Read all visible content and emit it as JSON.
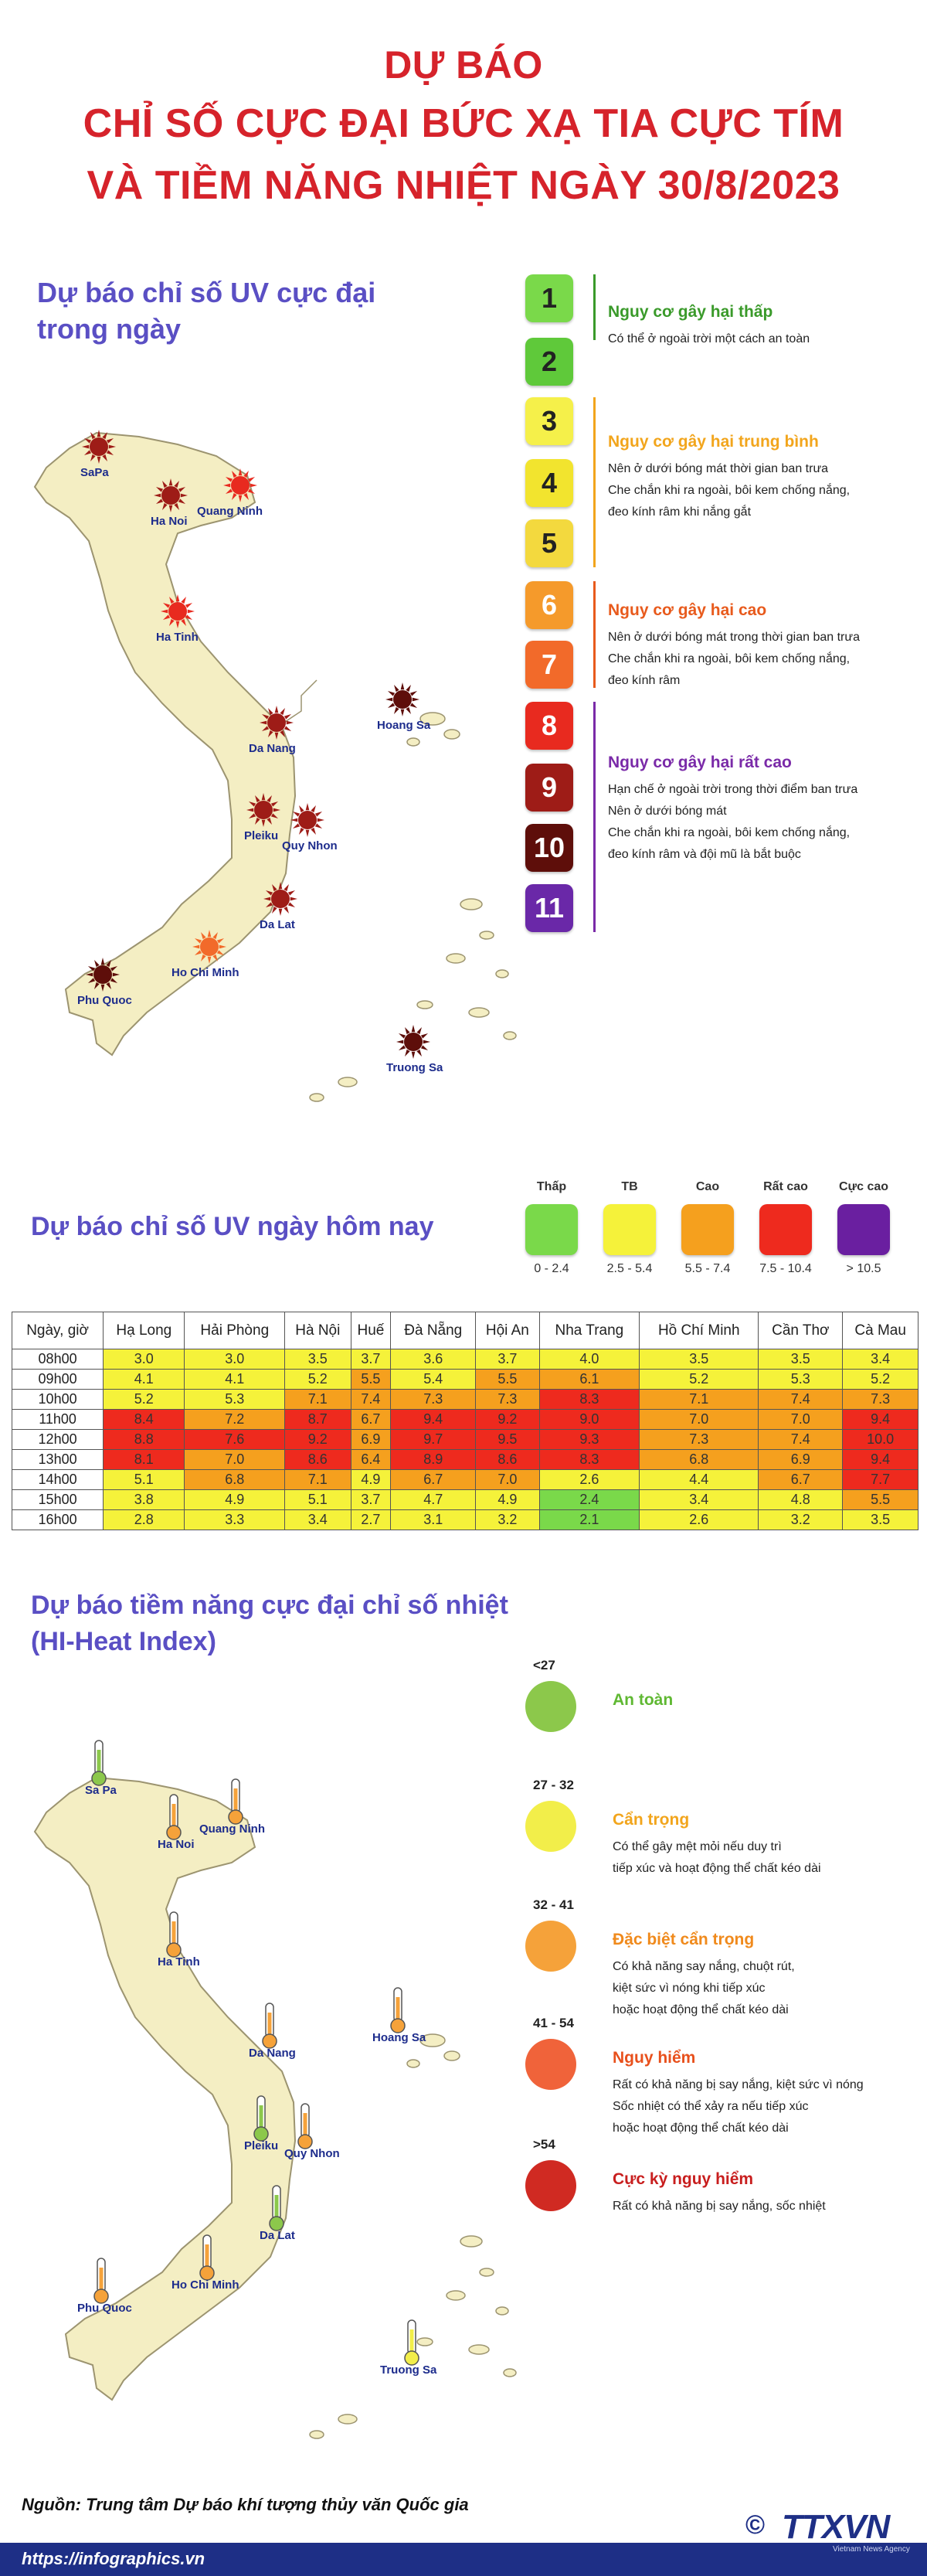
{
  "header": {
    "line1": "DỰ BÁO",
    "line2": "CHỈ SỐ CỰC ĐẠI BỨC XẠ TIA CỰC TÍM",
    "line3": "VÀ TIỀM NĂNG NHIỆT NGÀY 30/8/2023"
  },
  "uv_map": {
    "title_line1": "Dự báo chỉ số UV cực đại",
    "title_line2": "trong ngày",
    "cities": [
      {
        "name": "SaPa",
        "level": 9
      },
      {
        "name": "Ha Noi",
        "level": 9
      },
      {
        "name": "Quang Ninh",
        "level": 8
      },
      {
        "name": "Ha Tinh",
        "level": 8
      },
      {
        "name": "Hoang Sa",
        "level": 10
      },
      {
        "name": "Da Nang",
        "level": 9
      },
      {
        "name": "Pleiku",
        "level": 9
      },
      {
        "name": "Quy Nhon",
        "level": 9
      },
      {
        "name": "Da Lat",
        "level": 9
      },
      {
        "name": "Ho Chi Minh",
        "level": 7
      },
      {
        "name": "Phu Quoc",
        "level": 10
      },
      {
        "name": "Truong Sa",
        "level": 10
      }
    ]
  },
  "uv_scale": {
    "levels": [
      {
        "value": "1",
        "color": "#7ad94a"
      },
      {
        "value": "2",
        "color": "#5fc93a"
      },
      {
        "value": "3",
        "color": "#f5f04a"
      },
      {
        "value": "4",
        "color": "#f2e42e"
      },
      {
        "value": "5",
        "color": "#f3d93e"
      },
      {
        "value": "6",
        "color": "#f59a2b"
      },
      {
        "value": "7",
        "color": "#f26a2a"
      },
      {
        "value": "8",
        "color": "#e82a1f"
      },
      {
        "value": "9",
        "color": "#9e1c17"
      },
      {
        "value": "10",
        "color": "#5e0e0a"
      },
      {
        "value": "11",
        "color": "#6a28a8"
      }
    ],
    "groups": [
      {
        "title": "Nguy cơ gây hại thấp",
        "color": "#3a9a2a",
        "lines": [
          "Có thể ở ngoài trời một cách an toàn"
        ]
      },
      {
        "title": "Nguy cơ gây hại trung bình",
        "color": "#f2a51c",
        "lines": [
          "Nên ở dưới bóng mát thời gian ban trưa",
          "Che chắn khi ra ngoài, bôi kem chống nắng,",
          "đeo kính râm khi nắng gắt"
        ]
      },
      {
        "title": "Nguy cơ gây hại cao",
        "color": "#e85a1c",
        "lines": [
          "Nên ở dưới bóng mát trong thời gian ban trưa",
          "Che chắn khi ra ngoài, bôi kem chống nắng,",
          "đeo kính râm"
        ]
      },
      {
        "title": "Nguy cơ gây hại rất cao",
        "color": "#7a2aa8",
        "lines": [
          "Hạn chế ở ngoài trời trong thời điểm ban trưa",
          "Nên ở dưới bóng mát",
          "Che chắn khi ra ngoài, bôi kem chống nắng,",
          "đeo kính râm và đội mũ là bắt buộc"
        ]
      }
    ]
  },
  "uv_today": {
    "title": "Dự báo chỉ số UV ngày hôm nay",
    "legend": [
      {
        "label": "Thấp",
        "range": "0 - 2.4",
        "color": "#7ad94a"
      },
      {
        "label": "TB",
        "range": "2.5 - 5.4",
        "color": "#f5f23a"
      },
      {
        "label": "Cao",
        "range": "5.5 - 7.4",
        "color": "#f5a01e"
      },
      {
        "label": "Rất cao",
        "range": "7.5 - 10.4",
        "color": "#ee2a1e"
      },
      {
        "label": "Cực cao",
        "range": "> 10.5",
        "color": "#6a1fa0"
      }
    ]
  },
  "uv_table": {
    "header": [
      "Ngày, giờ",
      "Hạ Long",
      "Hải Phòng",
      "Hà Nội",
      "Huế",
      "Đà Nẵng",
      "Hội An",
      "Nha Trang",
      "Hồ Chí Minh",
      "Cần Thơ",
      "Cà Mau"
    ],
    "rows": [
      {
        "time": "08h00",
        "values": [
          "3.0",
          "3.0",
          "3.5",
          "3.7",
          "3.6",
          "3.7",
          "4.0",
          "3.5",
          "3.5",
          "3.4"
        ]
      },
      {
        "time": "09h00",
        "values": [
          "4.1",
          "4.1",
          "5.2",
          "5.5",
          "5.4",
          "5.5",
          "6.1",
          "5.2",
          "5.3",
          "5.2"
        ]
      },
      {
        "time": "10h00",
        "values": [
          "5.2",
          "5.3",
          "7.1",
          "7.4",
          "7.3",
          "7.3",
          "8.3",
          "7.1",
          "7.4",
          "7.3"
        ]
      },
      {
        "time": "11h00",
        "values": [
          "8.4",
          "7.2",
          "8.7",
          "6.7",
          "9.4",
          "9.2",
          "9.0",
          "7.0",
          "7.0",
          "9.4"
        ]
      },
      {
        "time": "12h00",
        "values": [
          "8.8",
          "7.6",
          "9.2",
          "6.9",
          "9.7",
          "9.5",
          "9.3",
          "7.3",
          "7.4",
          "10.0"
        ]
      },
      {
        "time": "13h00",
        "values": [
          "8.1",
          "7.0",
          "8.6",
          "6.4",
          "8.9",
          "8.6",
          "8.3",
          "6.8",
          "6.9",
          "9.4"
        ]
      },
      {
        "time": "14h00",
        "values": [
          "5.1",
          "6.8",
          "7.1",
          "4.9",
          "6.7",
          "7.0",
          "2.6",
          "4.4",
          "6.7",
          "7.7"
        ]
      },
      {
        "time": "15h00",
        "values": [
          "3.8",
          "4.9",
          "5.1",
          "3.7",
          "4.7",
          "4.9",
          "2.4",
          "3.4",
          "4.8",
          "5.5"
        ]
      },
      {
        "time": "16h00",
        "values": [
          "2.8",
          "3.3",
          "3.4",
          "2.7",
          "3.1",
          "3.2",
          "2.1",
          "2.6",
          "3.2",
          "3.5"
        ]
      }
    ]
  },
  "heat": {
    "title_line1": "Dự báo tiềm năng cực đại chỉ số nhiệt",
    "title_line2": "(HI-Heat Index)",
    "cities": [
      {
        "name": "Sa Pa",
        "level": "green"
      },
      {
        "name": "Ha Noi",
        "level": "orange"
      },
      {
        "name": "Quang Ninh",
        "level": "orange"
      },
      {
        "name": "Ha Tinh",
        "level": "orange"
      },
      {
        "name": "Hoang Sa",
        "level": "orange"
      },
      {
        "name": "Da Nang",
        "level": "orange"
      },
      {
        "name": "Pleiku",
        "level": "green"
      },
      {
        "name": "Quy Nhon",
        "level": "orange"
      },
      {
        "name": "Da Lat",
        "level": "green"
      },
      {
        "name": "Ho Chi Minh",
        "level": "orange"
      },
      {
        "name": "Phu Quoc",
        "level": "orange"
      },
      {
        "name": "Truong Sa",
        "level": "yellow"
      }
    ],
    "scale": [
      {
        "range": "<27",
        "title": "An toàn",
        "title_color": "#5fb832",
        "color": "#8cc84b",
        "lines": []
      },
      {
        "range": "27 - 32",
        "title": "Cẩn trọng",
        "title_color": "#f2a51c",
        "color": "#f2ee4a",
        "lines": [
          "Có thể gây mệt mỏi nếu duy trì",
          "tiếp xúc và hoạt động thể chất kéo dài"
        ]
      },
      {
        "range": "32 - 41",
        "title": "Đặc biệt cẩn trọng",
        "title_color": "#f08a1c",
        "color": "#f5a23a",
        "lines": [
          "Có khả năng say nắng, chuột rút,",
          "kiệt sức vì nóng khi tiếp xúc",
          "hoặc hoạt động thể chất kéo dài"
        ]
      },
      {
        "range": "41 - 54",
        "title": "Nguy hiểm",
        "title_color": "#e8501c",
        "color": "#f0633a",
        "lines": [
          "Rất có khả năng bị say nắng, kiệt sức vì nóng",
          "Sốc nhiệt có thể xảy ra nếu tiếp xúc",
          "hoặc hoạt động thể chất kéo dài"
        ]
      },
      {
        "range": ">54",
        "title": "Cực kỳ nguy hiểm",
        "title_color": "#c81e1e",
        "color": "#d02a22",
        "lines": [
          "Rất có khả năng bị say nắng, sốc nhiệt"
        ]
      }
    ]
  },
  "footer": {
    "source": "Nguồn: Trung tâm Dự báo khí tượng thủy văn Quốc gia",
    "url": "https://infographics.vn",
    "copyright": "©",
    "brand": "TTXVN",
    "brand_sub": "Vietnam News Agency"
  },
  "colors": {
    "title_red": "#d6232b",
    "section_blue": "#5a4fc4",
    "map_fill": "#f4eec3",
    "map_stroke": "#9c9470",
    "footer_navy": "#1e2f86"
  }
}
